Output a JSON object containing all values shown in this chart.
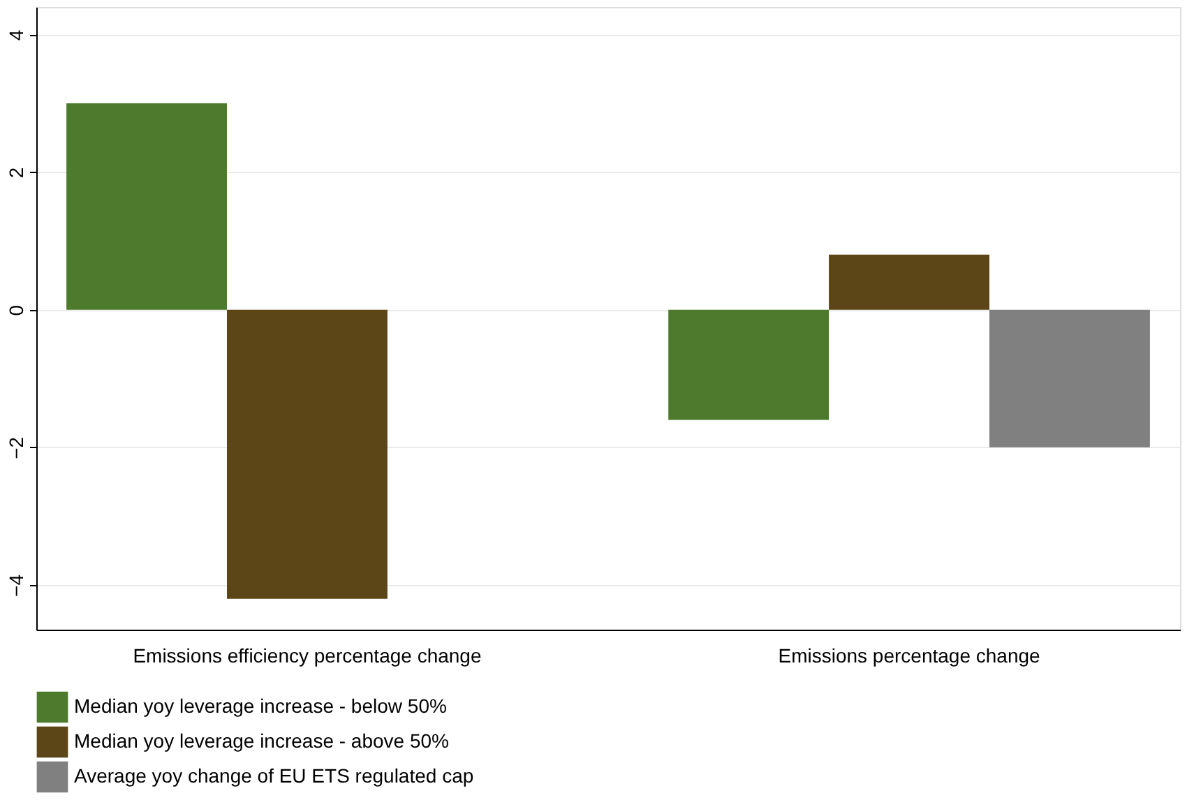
{
  "chart_data": {
    "type": "bar",
    "categories": [
      "Emissions efficiency percentage change",
      "Emissions percentage change"
    ],
    "series": [
      {
        "name": "Median yoy leverage increase - below 50%",
        "color": "#4e7a2e",
        "values": [
          3.0,
          -1.6
        ]
      },
      {
        "name": "Median yoy leverage increase - above 50%",
        "color": "#5c4516",
        "values": [
          -4.2,
          0.8
        ]
      },
      {
        "name": "Average yoy change of EU ETS regulated cap",
        "color": "#808080",
        "values": [
          null,
          -2.0
        ]
      }
    ],
    "ylim": [
      -4.65,
      4.4
    ],
    "yticks": [
      -4,
      -2,
      0,
      2,
      4
    ],
    "grid": "y",
    "legend": "bottom"
  }
}
